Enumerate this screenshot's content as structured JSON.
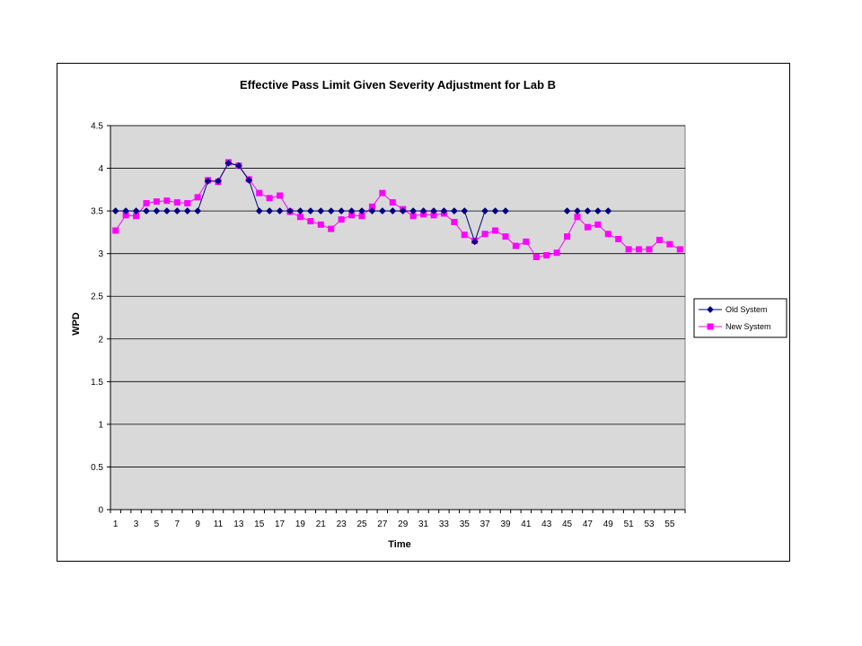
{
  "chart_data": {
    "type": "line",
    "title": "Effective Pass Limit Given Severity Adjustment for Lab B",
    "xlabel": "Time",
    "ylabel": "WPD",
    "ylim": [
      0,
      4.5
    ],
    "yticks": [
      "0",
      "0.5",
      "1",
      "1.5",
      "2",
      "2.5",
      "3",
      "3.5",
      "4",
      "4.5"
    ],
    "xticks": [
      "1",
      "3",
      "5",
      "7",
      "9",
      "11",
      "13",
      "15",
      "17",
      "19",
      "21",
      "23",
      "25",
      "27",
      "29",
      "31",
      "33",
      "35",
      "37",
      "39",
      "41",
      "43",
      "45",
      "47",
      "49",
      "51",
      "53",
      "55"
    ],
    "x": [
      1,
      2,
      3,
      4,
      5,
      6,
      7,
      8,
      9,
      10,
      11,
      12,
      13,
      14,
      15,
      16,
      17,
      18,
      19,
      20,
      21,
      22,
      23,
      24,
      25,
      26,
      27,
      28,
      29,
      30,
      31,
      32,
      33,
      34,
      35,
      36,
      37,
      38,
      39,
      40,
      41,
      42,
      43,
      44,
      45,
      46,
      47,
      48,
      49,
      50,
      51,
      52,
      53,
      54,
      55,
      56
    ],
    "grid": true,
    "legend_position": "right",
    "plot_background": "#d9d9d9",
    "series": [
      {
        "name": "Old System",
        "color": "#000080",
        "marker": "diamond",
        "values": [
          3.5,
          3.5,
          3.5,
          3.5,
          3.5,
          3.5,
          3.5,
          3.5,
          3.5,
          3.85,
          3.85,
          4.06,
          4.03,
          3.86,
          3.5,
          3.5,
          3.5,
          3.5,
          3.5,
          3.5,
          3.5,
          3.5,
          3.5,
          3.5,
          3.5,
          3.5,
          3.5,
          3.5,
          3.5,
          3.5,
          3.5,
          3.5,
          3.5,
          3.5,
          3.5,
          3.14,
          3.5,
          3.5,
          3.5,
          null,
          null,
          null,
          null,
          null,
          3.5,
          3.5,
          3.5,
          3.5,
          3.5,
          null,
          null,
          null,
          null,
          null,
          null,
          null
        ]
      },
      {
        "name": "New System",
        "color": "#ff00ff",
        "marker": "square",
        "values": [
          3.27,
          3.45,
          3.44,
          3.59,
          3.61,
          3.62,
          3.6,
          3.59,
          3.66,
          3.86,
          3.84,
          4.07,
          4.03,
          3.87,
          3.71,
          3.65,
          3.68,
          3.49,
          3.43,
          3.38,
          3.34,
          3.29,
          3.4,
          3.45,
          3.44,
          3.55,
          3.71,
          3.6,
          3.52,
          3.44,
          3.46,
          3.45,
          3.47,
          3.37,
          3.22,
          3.15,
          3.23,
          3.27,
          3.2,
          3.09,
          3.14,
          2.96,
          2.98,
          3.01,
          3.2,
          3.43,
          3.31,
          3.34,
          3.23,
          3.17,
          3.05,
          3.05,
          3.05,
          3.16,
          3.11,
          3.05
        ]
      }
    ]
  }
}
